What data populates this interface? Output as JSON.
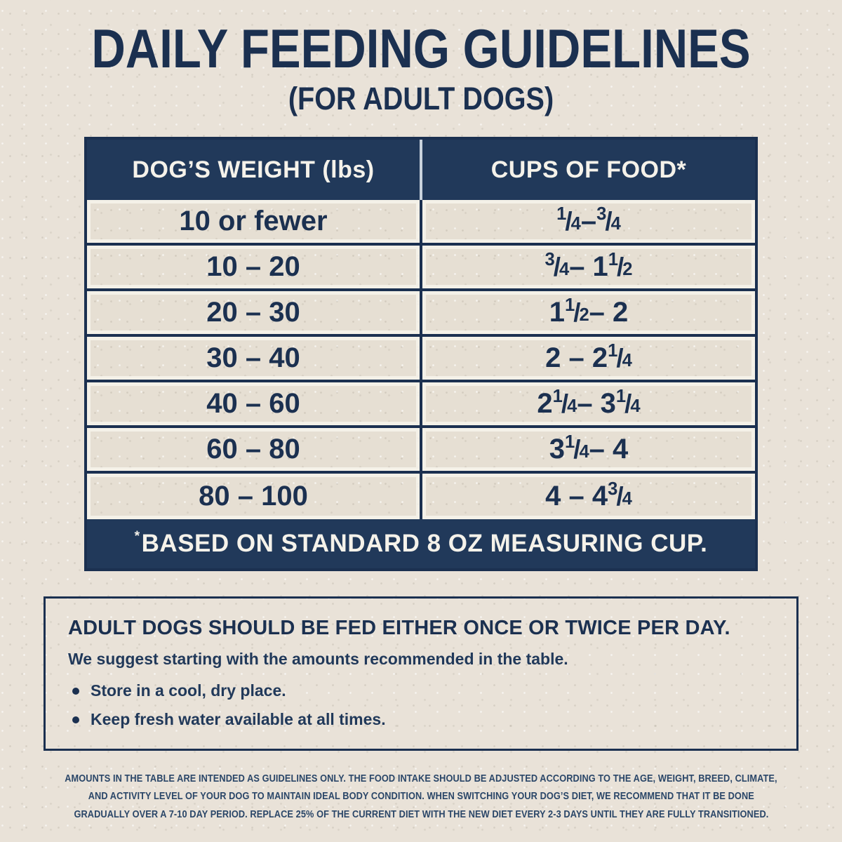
{
  "title": "DAILY FEEDING GUIDELINES",
  "subtitle": "(FOR ADULT DOGS)",
  "table": {
    "columns": [
      "DOG’S WEIGHT (lbs)",
      "CUPS OF FOOD*"
    ],
    "rows": [
      {
        "weight": "10 or fewer",
        "cups": "1/4 – 3/4"
      },
      {
        "weight": "10 – 20",
        "cups": "3/4 – 1 1/2"
      },
      {
        "weight": "20 – 30",
        "cups": "1 1/2 – 2"
      },
      {
        "weight": "30 – 40",
        "cups": "2 – 2 1/4"
      },
      {
        "weight": "40 – 60",
        "cups": "2 1/4 – 3 1/4"
      },
      {
        "weight": "60 – 80",
        "cups": "3 1/4 – 4"
      },
      {
        "weight": "80 – 100",
        "cups": "4 – 4 3/4"
      }
    ],
    "note_marker": "*",
    "note_text": "BASED ON STANDARD 8 OZ MEASURING CUP."
  },
  "info": {
    "heading": "ADULT DOGS SHOULD BE FED EITHER ONCE OR TWICE PER DAY.",
    "subheading": "We suggest starting with the amounts recommended in the table.",
    "bullets": [
      "Store in a cool, dry place.",
      "Keep fresh water available at all times."
    ]
  },
  "fineprint_lines": [
    "AMOUNTS IN THE TABLE ARE INTENDED AS GUIDELINES ONLY. THE FOOD INTAKE SHOULD BE ADJUSTED ACCORDING TO THE AGE, WEIGHT, BREED, CLIMATE,",
    "AND ACTIVITY LEVEL OF YOUR DOG TO MAINTAIN IDEAL BODY CONDITION. WHEN SWITCHING YOUR DOG’S DIET, WE RECOMMEND THAT IT BE DONE",
    "GRADUALLY OVER A 7-10 DAY PERIOD. REPLACE 25% OF THE CURRENT DIET WITH THE NEW DIET EVERY 2-3 DAYS UNTIL THEY ARE FULLY TRANSITIONED."
  ],
  "colors": {
    "navy": "#21395a",
    "navy_dark": "#1b3050",
    "cream_background": "#e9e2d8",
    "row_band": "#e6dfd3",
    "white_text": "#f5f2ea"
  }
}
